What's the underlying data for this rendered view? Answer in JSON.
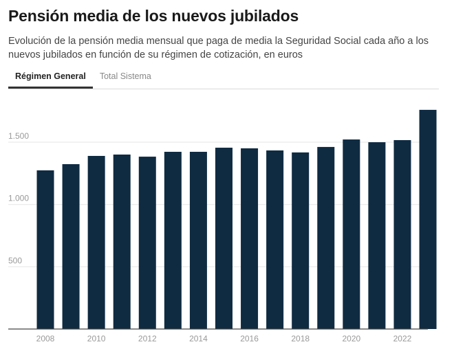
{
  "header": {
    "title": "Pensión media de los nuevos jubilados",
    "subtitle": "Evolución de la pensión media mensual que paga de media la Seguridad Social cada año a los nuevos jubilados en función de su régimen de cotización, en euros"
  },
  "tabs": [
    {
      "label": "Régimen General",
      "active": true
    },
    {
      "label": "Total Sistema",
      "active": false
    }
  ],
  "colors": {
    "bar": "#0f2b42",
    "grid": "#e6e6e6",
    "axis": "#444444"
  },
  "chart_data": {
    "type": "bar",
    "title": "Pensión media de los nuevos jubilados",
    "xlabel": "",
    "ylabel": "",
    "categories": [
      "2008",
      "2009",
      "2010",
      "2011",
      "2012",
      "2013",
      "2014",
      "2015",
      "2016",
      "2017",
      "2018",
      "2019",
      "2020",
      "2021",
      "2022",
      "2023"
    ],
    "values": [
      1274,
      1324,
      1390,
      1401,
      1384,
      1423,
      1423,
      1456,
      1451,
      1434,
      1418,
      1462,
      1522,
      1500,
      1517,
      1760
    ],
    "ylim": [
      0,
      1800
    ],
    "yticks": [
      500,
      1000,
      1500
    ],
    "ytick_labels": [
      "500",
      "1.000",
      "1.500"
    ],
    "xtick_labels": [
      "2008",
      "2010",
      "2012",
      "2014",
      "2016",
      "2018",
      "2020",
      "2022"
    ],
    "grid": true,
    "legend": "none"
  }
}
